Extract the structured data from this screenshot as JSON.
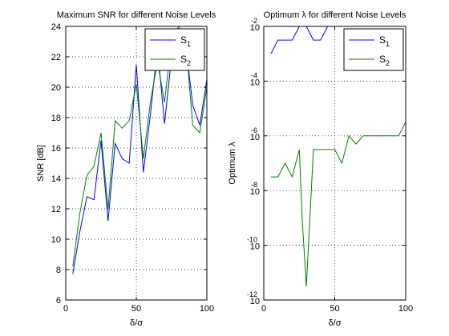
{
  "chart_data": [
    {
      "type": "line",
      "title": "Maximum SNR for different Noise Levels",
      "xlabel": "δ/σ",
      "ylabel": "SNR [dB]",
      "xlim": [
        0,
        100
      ],
      "ylim": [
        6,
        24
      ],
      "x_ticks": [
        0,
        50,
        100
      ],
      "y_ticks": [
        6,
        8,
        10,
        12,
        14,
        16,
        18,
        20,
        22,
        24
      ],
      "grid": true,
      "legend_position": "top-right",
      "series": [
        {
          "name": "S_1",
          "color": "#0000ff",
          "x": [
            5,
            10,
            15,
            20,
            25,
            30,
            35,
            40,
            45,
            50,
            55,
            60,
            65,
            70,
            75,
            80,
            85,
            90,
            95,
            100
          ],
          "y": [
            7.7,
            10.5,
            12.8,
            12.6,
            16.5,
            11.2,
            16.3,
            15.3,
            15.0,
            21.5,
            14.4,
            18.2,
            22.6,
            17.6,
            22.0,
            23.1,
            22.8,
            18.8,
            17.5,
            20.5
          ]
        },
        {
          "name": "S_2",
          "color": "#007f00",
          "x": [
            5,
            10,
            15,
            20,
            25,
            30,
            35,
            40,
            45,
            50,
            55,
            60,
            65,
            70,
            75,
            80,
            85,
            90,
            95,
            100
          ],
          "y": [
            8.2,
            11.7,
            14.2,
            14.8,
            17.0,
            12.0,
            17.8,
            17.3,
            17.8,
            20.2,
            15.3,
            19.0,
            21.7,
            19.0,
            23.1,
            24.0,
            23.0,
            17.5,
            17.0,
            20.0
          ]
        }
      ]
    },
    {
      "type": "line",
      "title": "Optimum λ for different Noise Levels",
      "xlabel": "δ/σ",
      "ylabel": "Optimum λ",
      "xlim": [
        0,
        100
      ],
      "ylim": [
        -12,
        -2
      ],
      "y_scale": "log",
      "x_ticks": [
        0,
        50,
        100
      ],
      "y_tick_exponents": [
        -12,
        -10,
        -8,
        -6,
        -4,
        -2
      ],
      "y_tick_base": "10",
      "grid": true,
      "legend_position": "top-right",
      "series": [
        {
          "name": "S_1",
          "color": "#0000ff",
          "x": [
            5,
            10,
            15,
            20,
            25,
            30,
            35,
            40,
            45,
            50,
            55,
            60,
            65,
            70,
            75,
            80,
            85,
            90,
            95,
            100
          ],
          "y_exponent": [
            -3.0,
            -2.5,
            -2.5,
            -2.5,
            -2.0,
            -2.0,
            -2.5,
            -2.5,
            -2.0,
            -2.0,
            -2.0,
            -2.0,
            -2.0,
            -2.0,
            -2.0,
            -2.0,
            -2.0,
            -2.0,
            -2.0,
            -2.0
          ]
        },
        {
          "name": "S_2",
          "color": "#007f00",
          "x": [
            5,
            10,
            15,
            20,
            25,
            27,
            30,
            35,
            40,
            45,
            50,
            55,
            60,
            65,
            70,
            75,
            80,
            85,
            90,
            95,
            100
          ],
          "y_exponent": [
            -7.5,
            -7.5,
            -7.0,
            -7.5,
            -6.5,
            -9.0,
            -11.5,
            -6.5,
            -6.5,
            -6.5,
            -6.5,
            -7.0,
            -6.0,
            -6.3,
            -6.0,
            -6.0,
            -6.0,
            -6.0,
            -6.0,
            -6.0,
            -5.5
          ]
        }
      ]
    }
  ]
}
